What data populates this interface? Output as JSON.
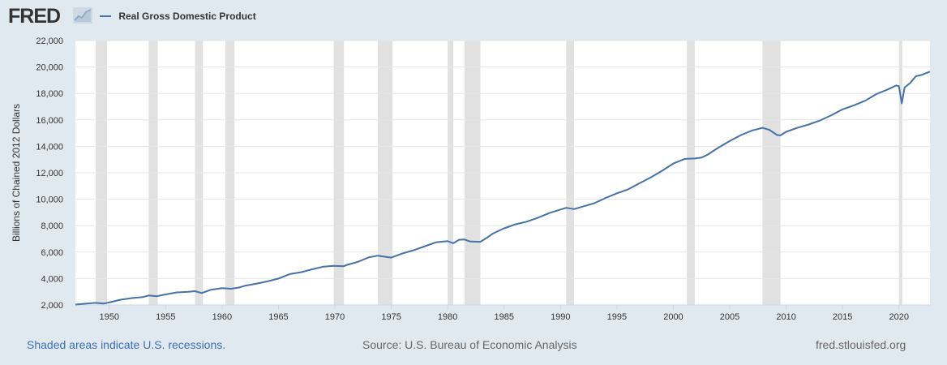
{
  "header": {
    "logo_text": "FRED"
  },
  "footer": {
    "recession_note": "Shaded areas indicate U.S. recessions.",
    "source": "Source: U.S. Bureau of Economic Analysis",
    "site": "fred.stlouisfed.org"
  },
  "colors": {
    "line": "#4572a7",
    "recession": "#e1e1e1",
    "grid": "#e6e6e6",
    "background": "#e1e9f0",
    "link": "#3b6fb6"
  },
  "chart_data": {
    "type": "line",
    "title": "",
    "xlabel": "",
    "ylabel": "Billions of Chained 2012 Dollars",
    "xlim": [
      1947,
      2022.75
    ],
    "ylim": [
      2000,
      22000
    ],
    "x_ticks": [
      1950,
      1955,
      1960,
      1965,
      1970,
      1975,
      1980,
      1985,
      1990,
      1995,
      2000,
      2005,
      2010,
      2015,
      2020
    ],
    "y_ticks": [
      2000,
      4000,
      6000,
      8000,
      10000,
      12000,
      14000,
      16000,
      18000,
      20000,
      22000
    ],
    "y_tick_labels": [
      "2,000",
      "4,000",
      "6,000",
      "8,000",
      "10,000",
      "12,000",
      "14,000",
      "16,000",
      "18,000",
      "20,000",
      "22,000"
    ],
    "grid": true,
    "legend_position": "top-left",
    "recessions": [
      [
        1948.8,
        1949.8
      ],
      [
        1953.5,
        1954.3
      ],
      [
        1957.6,
        1958.3
      ],
      [
        1960.3,
        1961.1
      ],
      [
        1969.9,
        1970.8
      ],
      [
        1973.8,
        1975.1
      ],
      [
        1980.0,
        1980.5
      ],
      [
        1981.5,
        1982.9
      ],
      [
        1990.5,
        1991.2
      ],
      [
        2001.2,
        2001.9
      ],
      [
        2007.9,
        2009.5
      ],
      [
        2020.0,
        2020.3
      ]
    ],
    "series": [
      {
        "name": "Real Gross Domestic Product",
        "color": "#4572a7",
        "points": [
          [
            1947.0,
            2030
          ],
          [
            1948.0,
            2110
          ],
          [
            1948.8,
            2160
          ],
          [
            1949.5,
            2110
          ],
          [
            1950.0,
            2190
          ],
          [
            1951.0,
            2400
          ],
          [
            1952.0,
            2520
          ],
          [
            1953.0,
            2600
          ],
          [
            1953.5,
            2720
          ],
          [
            1954.2,
            2660
          ],
          [
            1955.0,
            2800
          ],
          [
            1956.0,
            2950
          ],
          [
            1957.0,
            3000
          ],
          [
            1957.6,
            3040
          ],
          [
            1958.2,
            2900
          ],
          [
            1959.0,
            3150
          ],
          [
            1960.0,
            3270
          ],
          [
            1960.8,
            3230
          ],
          [
            1961.5,
            3320
          ],
          [
            1962.0,
            3450
          ],
          [
            1963.0,
            3600
          ],
          [
            1964.0,
            3780
          ],
          [
            1965.0,
            4000
          ],
          [
            1966.0,
            4340
          ],
          [
            1967.0,
            4480
          ],
          [
            1968.0,
            4700
          ],
          [
            1969.0,
            4900
          ],
          [
            1969.9,
            4960
          ],
          [
            1970.8,
            4930
          ],
          [
            1971.0,
            5010
          ],
          [
            1972.0,
            5250
          ],
          [
            1973.0,
            5600
          ],
          [
            1973.8,
            5730
          ],
          [
            1975.0,
            5580
          ],
          [
            1976.0,
            5900
          ],
          [
            1977.0,
            6150
          ],
          [
            1978.0,
            6450
          ],
          [
            1979.0,
            6750
          ],
          [
            1980.0,
            6830
          ],
          [
            1980.5,
            6670
          ],
          [
            1981.0,
            6930
          ],
          [
            1981.5,
            6950
          ],
          [
            1982.0,
            6800
          ],
          [
            1982.9,
            6780
          ],
          [
            1983.5,
            7100
          ],
          [
            1984.0,
            7400
          ],
          [
            1985.0,
            7800
          ],
          [
            1986.0,
            8100
          ],
          [
            1987.0,
            8300
          ],
          [
            1988.0,
            8600
          ],
          [
            1989.0,
            8950
          ],
          [
            1990.5,
            9350
          ],
          [
            1991.2,
            9250
          ],
          [
            1992.0,
            9450
          ],
          [
            1993.0,
            9700
          ],
          [
            1994.0,
            10100
          ],
          [
            1995.0,
            10450
          ],
          [
            1996.0,
            10750
          ],
          [
            1997.0,
            11200
          ],
          [
            1998.0,
            11650
          ],
          [
            1999.0,
            12150
          ],
          [
            2000.0,
            12700
          ],
          [
            2001.0,
            13050
          ],
          [
            2001.9,
            13080
          ],
          [
            2002.5,
            13150
          ],
          [
            2003.0,
            13350
          ],
          [
            2004.0,
            13900
          ],
          [
            2005.0,
            14400
          ],
          [
            2006.0,
            14850
          ],
          [
            2007.0,
            15200
          ],
          [
            2007.9,
            15400
          ],
          [
            2008.5,
            15250
          ],
          [
            2009.2,
            14850
          ],
          [
            2009.5,
            14830
          ],
          [
            2010.0,
            15100
          ],
          [
            2011.0,
            15400
          ],
          [
            2012.0,
            15650
          ],
          [
            2013.0,
            15950
          ],
          [
            2014.0,
            16350
          ],
          [
            2015.0,
            16800
          ],
          [
            2016.0,
            17100
          ],
          [
            2017.0,
            17450
          ],
          [
            2018.0,
            17950
          ],
          [
            2019.0,
            18300
          ],
          [
            2019.75,
            18600
          ],
          [
            2020.0,
            18550
          ],
          [
            2020.25,
            17250
          ],
          [
            2020.5,
            18450
          ],
          [
            2021.0,
            18800
          ],
          [
            2021.5,
            19300
          ],
          [
            2022.0,
            19400
          ],
          [
            2022.75,
            19650
          ]
        ]
      }
    ]
  }
}
